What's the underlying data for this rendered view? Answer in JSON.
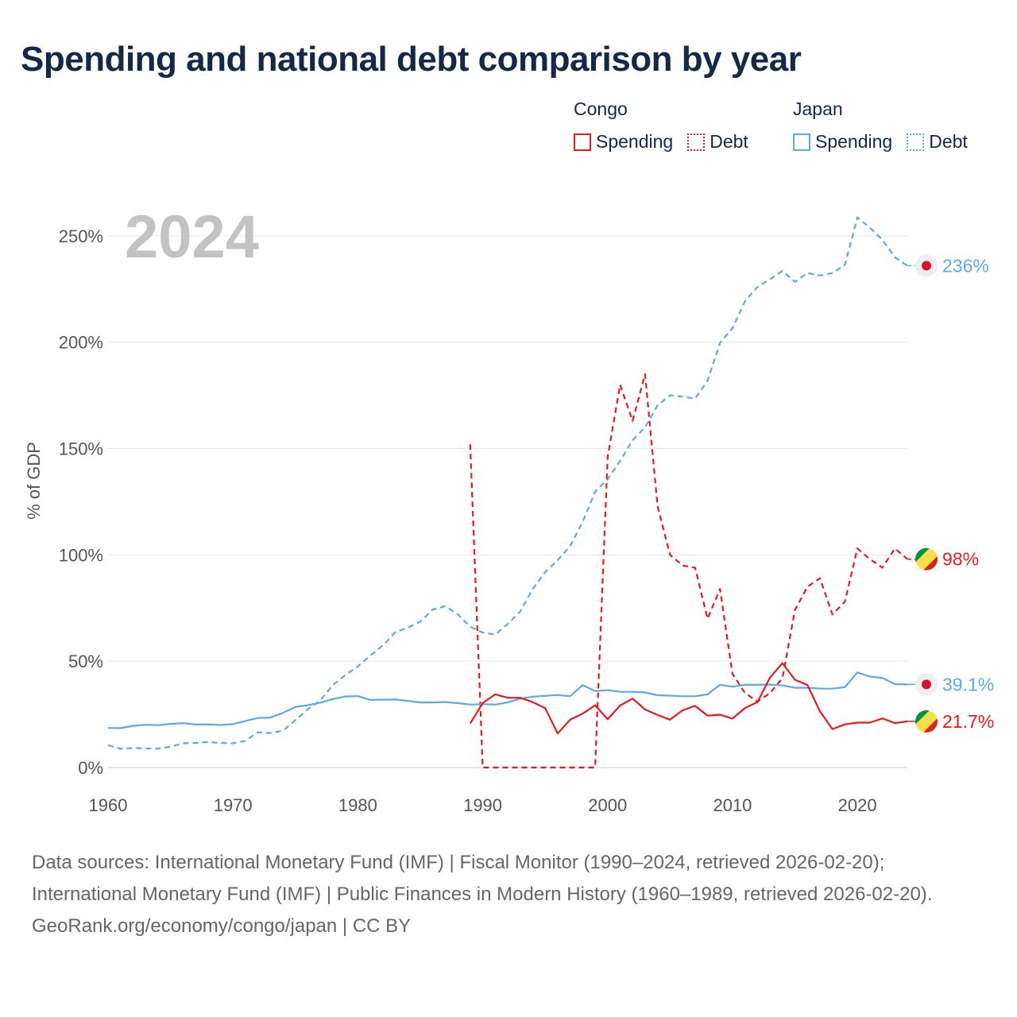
{
  "title": "Spending and national debt comparison by year",
  "legend": {
    "groups": [
      {
        "country": "Congo",
        "items": [
          {
            "label": "Spending",
            "style": "solid",
            "color": "#e8191f"
          },
          {
            "label": "Debt",
            "style": "dotted",
            "color": "#e8191f"
          }
        ]
      },
      {
        "country": "Japan",
        "items": [
          {
            "label": "Spending",
            "style": "solid",
            "color": "#5ea8e8"
          },
          {
            "label": "Debt",
            "style": "dotted",
            "color": "#5ea8e8"
          }
        ]
      }
    ]
  },
  "chart_data": {
    "type": "line",
    "year_label": "2024",
    "ylabel": "% of GDP",
    "xlim": [
      1960,
      2024
    ],
    "ylim": [
      0,
      260
    ],
    "x_ticks": [
      1960,
      1970,
      1980,
      1990,
      2000,
      2010,
      2020
    ],
    "y_ticks": [
      {
        "value": 0,
        "label": "0%"
      },
      {
        "value": 50,
        "label": "50%"
      },
      {
        "value": 100,
        "label": "100%"
      },
      {
        "value": 150,
        "label": "150%"
      },
      {
        "value": 200,
        "label": "200%"
      },
      {
        "value": 250,
        "label": "250%"
      }
    ],
    "grid": true,
    "series": [
      {
        "name": "Japan Debt",
        "country": "Japan",
        "metric": "Debt",
        "color": "#5ea8e8",
        "dash": true,
        "end_label": "236%",
        "end_value": 236,
        "x": [
          1960,
          1961,
          1962,
          1963,
          1964,
          1965,
          1966,
          1967,
          1968,
          1969,
          1970,
          1971,
          1972,
          1973,
          1974,
          1975,
          1976,
          1977,
          1978,
          1979,
          1980,
          1981,
          1982,
          1983,
          1984,
          1985,
          1986,
          1987,
          1988,
          1989,
          1990,
          1991,
          1992,
          1993,
          1994,
          1995,
          1996,
          1997,
          1998,
          1999,
          2000,
          2001,
          2002,
          2003,
          2004,
          2005,
          2006,
          2007,
          2008,
          2009,
          2010,
          2011,
          2012,
          2013,
          2014,
          2015,
          2016,
          2017,
          2018,
          2019,
          2020,
          2021,
          2022,
          2023,
          2024
        ],
        "y": [
          10.5,
          8.8,
          9.2,
          9.0,
          8.8,
          9.8,
          11.4,
          11.6,
          12.0,
          11.6,
          11.4,
          12.6,
          16.6,
          16.2,
          17.3,
          22.3,
          27.4,
          31.6,
          38.8,
          43.5,
          47.6,
          52.6,
          57.4,
          63.6,
          65.8,
          68.6,
          74.3,
          75.9,
          72.1,
          66.2,
          63.5,
          62.5,
          67.5,
          73.3,
          84.0,
          91.9,
          97.5,
          104.2,
          115.5,
          129.7,
          135.6,
          144.2,
          153.9,
          160.0,
          170.3,
          175.0,
          174.4,
          173.5,
          181.8,
          199.7,
          206.6,
          219.3,
          226.0,
          229.6,
          233.5,
          228.4,
          232.5,
          231.4,
          232.5,
          236.4,
          258.7,
          253.9,
          248.1,
          240.0,
          236.0
        ]
      },
      {
        "name": "Congo Debt",
        "country": "Congo",
        "metric": "Debt",
        "color": "#e8191f",
        "dash": true,
        "end_label": "98%",
        "end_value": 98,
        "x": [
          1989,
          1990,
          1991,
          1992,
          1993,
          1994,
          1995,
          1996,
          1997,
          1998,
          1999,
          2000,
          2001,
          2002,
          2003,
          2004,
          2005,
          2006,
          2007,
          2008,
          2009,
          2010,
          2011,
          2012,
          2013,
          2014,
          2015,
          2016,
          2017,
          2018,
          2019,
          2020,
          2021,
          2022,
          2023,
          2024
        ],
        "y": [
          152,
          0,
          0,
          0,
          0,
          0,
          0,
          0,
          0,
          0,
          0,
          146,
          180,
          163,
          185,
          123,
          100,
          95,
          94,
          70,
          84,
          44,
          35,
          31,
          35,
          42,
          74,
          85,
          89,
          72,
          78,
          103,
          98,
          94,
          103,
          98
        ]
      },
      {
        "name": "Japan Spending",
        "country": "Japan",
        "metric": "Spending",
        "color": "#5ea8e8",
        "dash": false,
        "end_label": "39.1%",
        "end_value": 39.1,
        "x": [
          1960,
          1961,
          1962,
          1963,
          1964,
          1965,
          1966,
          1967,
          1968,
          1969,
          1970,
          1971,
          1972,
          1973,
          1974,
          1975,
          1976,
          1977,
          1978,
          1979,
          1980,
          1981,
          1982,
          1983,
          1984,
          1985,
          1986,
          1987,
          1988,
          1989,
          1990,
          1991,
          1992,
          1993,
          1994,
          1995,
          1996,
          1997,
          1998,
          1999,
          2000,
          2001,
          2002,
          2003,
          2004,
          2005,
          2006,
          2007,
          2008,
          2009,
          2010,
          2011,
          2012,
          2013,
          2014,
          2015,
          2016,
          2017,
          2018,
          2019,
          2020,
          2021,
          2022,
          2023,
          2024
        ],
        "y": [
          18.6,
          18.5,
          19.6,
          20.1,
          19.9,
          20.5,
          20.9,
          20.2,
          20.3,
          20.0,
          20.4,
          21.9,
          23.3,
          23.5,
          25.7,
          28.5,
          29.3,
          30.5,
          32.2,
          33.4,
          33.6,
          31.8,
          31.9,
          32.0,
          31.3,
          30.6,
          30.6,
          30.8,
          30.3,
          29.6,
          29.8,
          29.6,
          30.6,
          32.4,
          33.3,
          33.7,
          34.1,
          33.5,
          38.8,
          36.0,
          36.4,
          35.6,
          35.6,
          35.3,
          34.0,
          33.8,
          33.5,
          33.5,
          34.4,
          38.9,
          38.0,
          38.9,
          38.9,
          39.0,
          38.6,
          37.5,
          37.5,
          37.1,
          37.1,
          37.8,
          44.7,
          42.8,
          42.1,
          39.2,
          39.1
        ]
      },
      {
        "name": "Congo Spending",
        "country": "Congo",
        "metric": "Spending",
        "color": "#e8191f",
        "dash": false,
        "end_label": "21.7%",
        "end_value": 21.7,
        "x": [
          1989,
          1990,
          1991,
          1992,
          1993,
          1994,
          1995,
          1996,
          1997,
          1998,
          1999,
          2000,
          2001,
          2002,
          2003,
          2004,
          2005,
          2006,
          2007,
          2008,
          2009,
          2010,
          2011,
          2012,
          2013,
          2014,
          2015,
          2016,
          2017,
          2018,
          2019,
          2020,
          2021,
          2022,
          2023,
          2024
        ],
        "y": [
          20.7,
          30.3,
          34.4,
          32.8,
          32.8,
          30.8,
          27.9,
          16.0,
          22.5,
          25.3,
          29.3,
          22.7,
          29.2,
          32.4,
          27.3,
          24.7,
          22.5,
          26.9,
          29.0,
          24.4,
          24.8,
          23.0,
          28.0,
          30.8,
          42.3,
          49.1,
          41.3,
          38.8,
          26.4,
          18.1,
          20.3,
          21.1,
          21.1,
          23.1,
          20.9,
          21.7
        ]
      }
    ]
  },
  "footer": {
    "sources": "Data sources: International Monetary Fund (IMF) | Fiscal Monitor (1990–2024, retrieved 2026-02-20); International Monetary Fund (IMF) | Public Finances in Modern History (1960–1989, retrieved 2026-02-20).",
    "attribution": "GeoRank.org/economy/congo/japan | CC BY"
  }
}
